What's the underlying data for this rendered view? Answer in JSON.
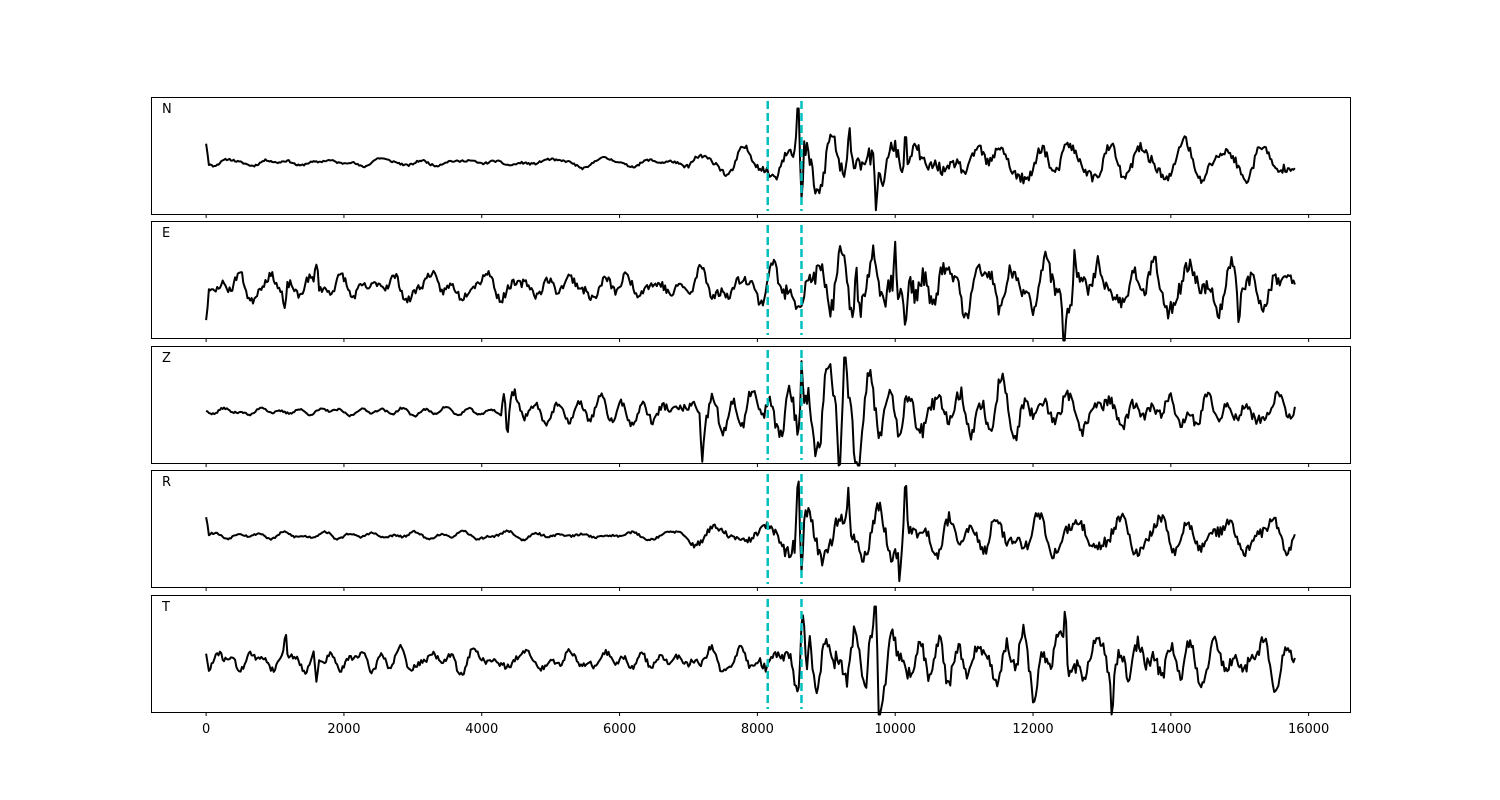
{
  "chart_data": {
    "type": "line",
    "xlim": [
      -800,
      16600
    ],
    "x_ticks": [
      0,
      2000,
      4000,
      6000,
      8000,
      10000,
      12000,
      14000,
      16000
    ],
    "x_tick_labels": [
      "0",
      "2000",
      "4000",
      "6000",
      "8000",
      "10000",
      "12000",
      "14000",
      "16000"
    ],
    "grid": false,
    "y_ticks_shown": false,
    "n_samples": 15801,
    "markers": [
      {
        "x": 8150,
        "color": "#00bfbf",
        "style": "dashed"
      },
      {
        "x": 8640,
        "color": "#00bfbf",
        "style": "dashed"
      }
    ],
    "line_color": "#000000",
    "panels": [
      {
        "label": "N",
        "seed": 11,
        "amp_anchors": [
          [
            0,
            0.07
          ],
          [
            6800,
            0.08
          ],
          [
            7200,
            0.22
          ],
          [
            8000,
            0.2
          ],
          [
            8500,
            0.55
          ],
          [
            8700,
            0.7
          ],
          [
            9500,
            0.7
          ],
          [
            10500,
            0.4
          ],
          [
            15800,
            0.35
          ]
        ],
        "spikes": [
          [
            0,
            0.35
          ],
          [
            8590,
            1.0
          ],
          [
            8640,
            -0.95
          ],
          [
            9330,
            0.65
          ],
          [
            9720,
            -0.6
          ],
          [
            10150,
            0.6
          ]
        ]
      },
      {
        "label": "E",
        "seed": 23,
        "amp_anchors": [
          [
            0,
            0.28
          ],
          [
            7000,
            0.3
          ],
          [
            8000,
            0.35
          ],
          [
            9000,
            0.7
          ],
          [
            10000,
            0.8
          ],
          [
            11000,
            0.55
          ],
          [
            12500,
            0.6
          ],
          [
            15800,
            0.45
          ]
        ],
        "spikes": [
          [
            0,
            -0.6
          ],
          [
            1600,
            0.45
          ],
          [
            1140,
            -0.4
          ],
          [
            9430,
            0.9
          ],
          [
            10150,
            -0.95
          ],
          [
            10000,
            0.85
          ],
          [
            12450,
            -0.95
          ],
          [
            12600,
            0.7
          ],
          [
            14980,
            -0.7
          ]
        ]
      },
      {
        "label": "Z",
        "seed": 37,
        "amp_anchors": [
          [
            0,
            0.07
          ],
          [
            4300,
            0.07
          ],
          [
            4380,
            0.35
          ],
          [
            5000,
            0.2
          ],
          [
            7000,
            0.3
          ],
          [
            7300,
            0.5
          ],
          [
            8000,
            0.35
          ],
          [
            8640,
            0.8
          ],
          [
            9500,
            0.75
          ],
          [
            11000,
            0.5
          ],
          [
            15800,
            0.3
          ]
        ],
        "spikes": [
          [
            4320,
            0.4
          ],
          [
            4380,
            -0.45
          ],
          [
            7200,
            -0.75
          ],
          [
            8640,
            1.0
          ],
          [
            9270,
            0.85
          ],
          [
            9190,
            -0.8
          ]
        ]
      },
      {
        "label": "R",
        "seed": 53,
        "amp_anchors": [
          [
            0,
            0.07
          ],
          [
            6800,
            0.08
          ],
          [
            7200,
            0.25
          ],
          [
            8000,
            0.2
          ],
          [
            8500,
            0.6
          ],
          [
            9500,
            0.65
          ],
          [
            10500,
            0.45
          ],
          [
            15800,
            0.35
          ]
        ],
        "spikes": [
          [
            0,
            0.35
          ],
          [
            8590,
            1.0
          ],
          [
            8640,
            -0.95
          ],
          [
            10150,
            0.85
          ],
          [
            10070,
            -0.7
          ],
          [
            9320,
            0.7
          ]
        ]
      },
      {
        "label": "T",
        "seed": 71,
        "amp_anchors": [
          [
            0,
            0.2
          ],
          [
            7000,
            0.22
          ],
          [
            8000,
            0.3
          ],
          [
            8640,
            0.5
          ],
          [
            9500,
            0.75
          ],
          [
            10500,
            0.55
          ],
          [
            12500,
            0.6
          ],
          [
            15800,
            0.4
          ]
        ],
        "spikes": [
          [
            0,
            0.3
          ],
          [
            1150,
            0.4
          ],
          [
            1600,
            -0.55
          ],
          [
            9720,
            1.0
          ],
          [
            9770,
            -0.9
          ],
          [
            8650,
            0.9
          ],
          [
            8720,
            -0.8
          ],
          [
            13150,
            -0.75
          ],
          [
            12470,
            0.8
          ]
        ]
      }
    ]
  }
}
